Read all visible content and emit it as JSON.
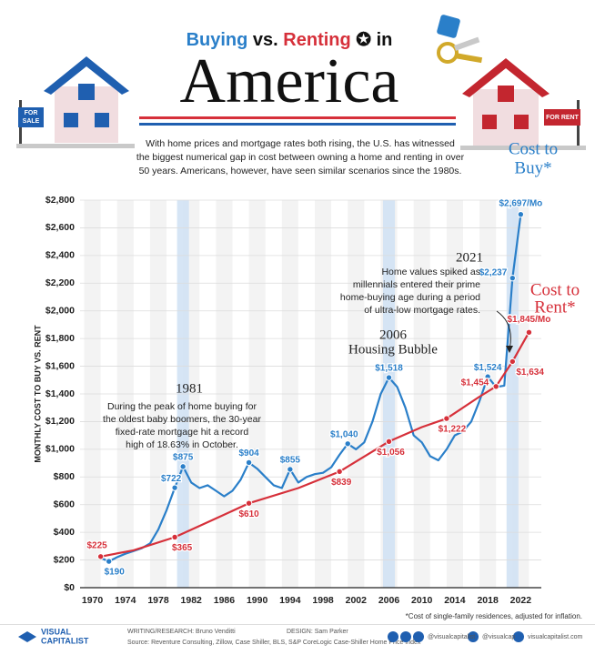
{
  "header": {
    "title": [
      "Buying",
      "vs.",
      "Renting",
      "in",
      "America"
    ],
    "subtitle": [
      "With home prices and mortgage rates both rising, the U.S. has witnessed",
      "the biggest numerical gap in cost between owning a home and renting in over",
      "50 years. Americans, however, have seen similar scenarios since the 1980s."
    ],
    "sale_sign": [
      "FOR",
      "SALE"
    ],
    "rent_sign": "FOR RENT"
  },
  "chart_data": {
    "type": "line",
    "y_label": "MONTHLY COST TO BUY VS. RENT",
    "xlim": [
      1968.5,
      2024.5
    ],
    "xticks": [
      1970,
      1974,
      1978,
      1982,
      1986,
      1990,
      1994,
      1998,
      2002,
      2006,
      2010,
      2014,
      2018,
      2022
    ],
    "ylim": [
      0,
      2800
    ],
    "yticks": [
      {
        "value": 0,
        "label": "$0"
      },
      {
        "value": 200,
        "label": "$200"
      },
      {
        "value": 400,
        "label": "$400"
      },
      {
        "value": 600,
        "label": "$600"
      },
      {
        "value": 800,
        "label": "$800"
      },
      {
        "value": 1000,
        "label": "$1,000"
      },
      {
        "value": 1200,
        "label": "$1,200"
      },
      {
        "value": 1400,
        "label": "$1,400"
      },
      {
        "value": 1600,
        "label": "$1,600"
      },
      {
        "value": 1800,
        "label": "$1,800"
      },
      {
        "value": 2000,
        "label": "$2,000"
      },
      {
        "value": 2200,
        "label": "$2,200"
      },
      {
        "value": 2400,
        "label": "$2,400"
      },
      {
        "value": 2600,
        "label": "$2,600"
      },
      {
        "value": 2800,
        "label": "$2,800"
      }
    ],
    "grid": true,
    "highlight_years": [
      1981,
      2006,
      2021
    ],
    "series": [
      {
        "name": [
          "Cost to",
          "Buy*"
        ],
        "color": "#2a7fc9",
        "x": [
          1971,
          1972,
          1973,
          1974,
          1975,
          1976,
          1977,
          1978,
          1979,
          1980,
          1981,
          1982,
          1983,
          1984,
          1985,
          1986,
          1987,
          1988,
          1989,
          1990,
          1991,
          1992,
          1993,
          1994,
          1995,
          1996,
          1997,
          1998,
          1999,
          2000,
          2001,
          2002,
          2003,
          2004,
          2005,
          2006,
          2007,
          2008,
          2009,
          2010,
          2011,
          2012,
          2013,
          2014,
          2015,
          2016,
          2017,
          2018,
          2019,
          2020,
          2021,
          2022
        ],
        "values": [
          215,
          190,
          220,
          245,
          265,
          285,
          320,
          420,
          560,
          722,
          875,
          760,
          720,
          740,
          700,
          660,
          700,
          780,
          904,
          860,
          800,
          740,
          720,
          855,
          760,
          800,
          820,
          830,
          870,
          960,
          1040,
          1000,
          1050,
          1200,
          1400,
          1518,
          1450,
          1300,
          1100,
          1050,
          950,
          920,
          1000,
          1100,
          1130,
          1200,
          1350,
          1524,
          1450,
          1460,
          2237,
          2697
        ],
        "value_labels": [
          null,
          "$190",
          null,
          null,
          null,
          null,
          null,
          null,
          null,
          "$722",
          "$875",
          null,
          null,
          null,
          null,
          null,
          null,
          null,
          "$904",
          null,
          null,
          null,
          null,
          "$855",
          null,
          null,
          null,
          null,
          null,
          null,
          "$1,040",
          null,
          null,
          null,
          null,
          "$1,518",
          null,
          null,
          null,
          null,
          null,
          null,
          null,
          null,
          null,
          null,
          null,
          "$1,524",
          null,
          null,
          "$2,237",
          "$2,697/Mo"
        ]
      },
      {
        "name": [
          "Cost to",
          "Rent*"
        ],
        "color": "#d6303a",
        "x": [
          1971,
          1975,
          1980,
          1985,
          1989,
          1995,
          2000,
          2006,
          2010,
          2013,
          2017,
          2019,
          2021,
          2023
        ],
        "values": [
          225,
          270,
          365,
          500,
          610,
          720,
          839,
          1056,
          1160,
          1222,
          1380,
          1454,
          1634,
          1845
        ],
        "value_labels": [
          "$225",
          null,
          "$365",
          null,
          "$610",
          null,
          "$839",
          "$1,056",
          null,
          "$1,222",
          null,
          "$1,454",
          "$1,634",
          "$1,845/Mo"
        ]
      }
    ],
    "annotations": [
      {
        "heading": "1981",
        "lines": [
          "During the peak of home buying for",
          "the oldest baby boomers, the 30-year",
          "fixed-rate mortgage hit a record",
          "high of 18.63% in October."
        ]
      },
      {
        "heading": "2006",
        "lines": [
          "Housing Bubble"
        ]
      },
      {
        "heading": "2021",
        "lines": [
          "Home values spiked as",
          "millennials entered their prime",
          "home-buying age during a period",
          "of ultra-low mortgage rates."
        ]
      }
    ],
    "footnote": "*Cost of single-family residences, adjusted for inflation."
  },
  "footer": {
    "brand": [
      "VISUAL",
      "CAPITALIST"
    ],
    "research": "WRITING/RESEARCH: Bruno Venditti",
    "design": "DESIGN: Sam Parker",
    "source": "Source: Reventure Consulting, Zillow, Case Shiller, BLS, S&P CoreLogic Case-Shiller Home Price Index",
    "handles": [
      "@visualcapitalist",
      "@visualcap",
      "visualcapitalist.com"
    ]
  }
}
